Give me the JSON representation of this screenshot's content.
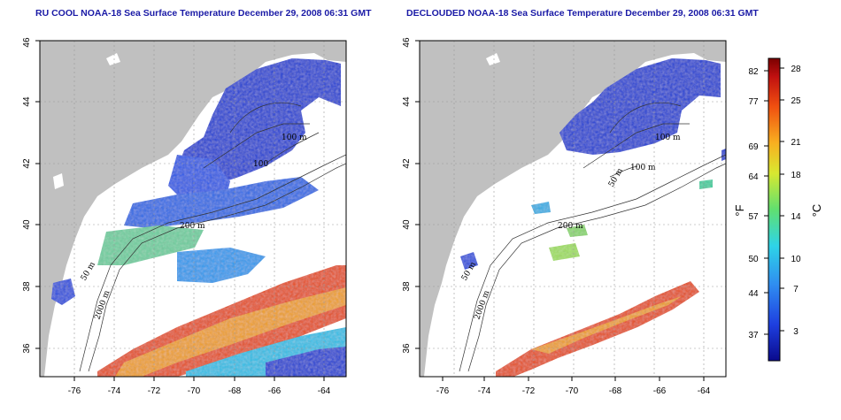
{
  "titles": {
    "left": "RU COOL NOAA-18 Sea Surface Temperature December 29, 2008 06:31 GMT",
    "right": "DECLOUDED NOAA-18 Sea Surface Temperature December 29, 2008 06:31 GMT"
  },
  "axes": {
    "lon_ticks": [
      "-76",
      "-74",
      "-72",
      "-70",
      "-68",
      "-66",
      "-64"
    ],
    "lat_ticks": [
      "36",
      "38",
      "40",
      "42",
      "44",
      "46"
    ]
  },
  "contour_labels": {
    "left": [
      "100 m",
      "100",
      "200 m",
      "50 m",
      "2000 m"
    ],
    "right": [
      "100 m",
      "100 m",
      "50 m",
      "200 m",
      "50 m",
      "2000 m"
    ]
  },
  "colorbar": {
    "unit_f": "°F",
    "unit_c": "°C",
    "f_ticks": [
      "82",
      "77",
      "69",
      "64",
      "57",
      "50",
      "44",
      "37"
    ],
    "c_ticks": [
      "28",
      "25",
      "21",
      "18",
      "14",
      "10",
      "7",
      "3"
    ]
  },
  "colors": {
    "land": "#c0c0c0",
    "cold": "#1e3fd6",
    "warm": "#e8501e",
    "title": "#1a1aa6"
  }
}
